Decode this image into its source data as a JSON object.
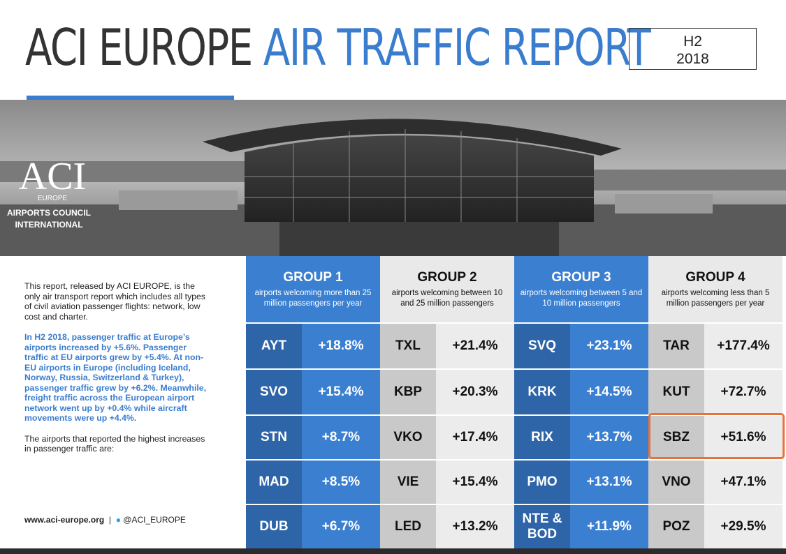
{
  "header": {
    "title_main": "ACI EUROPE",
    "title_accent": "AIR TRAFFIC REPORT",
    "period": "H2",
    "year": "2018"
  },
  "logo": {
    "mark": "ACI",
    "region": "EUROPE",
    "name_line1": "AIRPORTS COUNCIL",
    "name_line2": "INTERNATIONAL"
  },
  "intro": {
    "paragraph1": "This report, released by ACI EUROPE, is the only air transport report which includes all types of civil aviation passenger flights: network, low cost and charter.",
    "paragraph2": "In H2 2018, passenger traffic at Europe’s airports increased by +5.6%. Passenger traffic at EU airports grew by +5.4%. At non-EU airports in Europe (including Iceland, Norway, Russia, Switzerland & Turkey), passenger traffic grew by +6.2%. Meanwhile, freight traffic across the European airport network went up by +0.4% while aircraft movements were up +4.4%.",
    "paragraph3": "The airports that reported the highest increases in passenger traffic are:"
  },
  "footer": {
    "website": "www.aci-europe.org",
    "twitter": "@ACI_EUROPE"
  },
  "groups": [
    {
      "title": "GROUP 1",
      "subtitle": "airports welcoming more than 25 million passengers per year",
      "rows": [
        {
          "code": "AYT",
          "change": "+18.8%"
        },
        {
          "code": "SVO",
          "change": "+15.4%"
        },
        {
          "code": "STN",
          "change": "+8.7%"
        },
        {
          "code": "MAD",
          "change": "+8.5%"
        },
        {
          "code": "DUB",
          "change": "+6.7%"
        }
      ]
    },
    {
      "title": "GROUP 2",
      "subtitle": "airports welcoming between 10 and 25 million passengers",
      "rows": [
        {
          "code": "TXL",
          "change": "+21.4%"
        },
        {
          "code": "KBP",
          "change": "+20.3%"
        },
        {
          "code": "VKO",
          "change": "+17.4%"
        },
        {
          "code": "VIE",
          "change": "+15.4%"
        },
        {
          "code": "LED",
          "change": "+13.2%"
        }
      ]
    },
    {
      "title": "GROUP 3",
      "subtitle": "airports welcoming between 5 and 10 million passengers",
      "rows": [
        {
          "code": "SVQ",
          "change": "+23.1%"
        },
        {
          "code": "KRK",
          "change": "+14.5%"
        },
        {
          "code": "RIX",
          "change": "+13.7%"
        },
        {
          "code": "PMO",
          "change": "+13.1%"
        },
        {
          "code": "NTE & BOD",
          "change": "+11.9%"
        }
      ]
    },
    {
      "title": "GROUP 4",
      "subtitle": "airports welcoming less than 5 million passengers per year",
      "rows": [
        {
          "code": "TAR",
          "change": "+177.4%"
        },
        {
          "code": "KUT",
          "change": "+72.7%"
        },
        {
          "code": "SBZ",
          "change": "+51.6%"
        },
        {
          "code": "VNO",
          "change": "+47.1%"
        },
        {
          "code": "POZ",
          "change": "+29.5%"
        }
      ]
    }
  ]
}
